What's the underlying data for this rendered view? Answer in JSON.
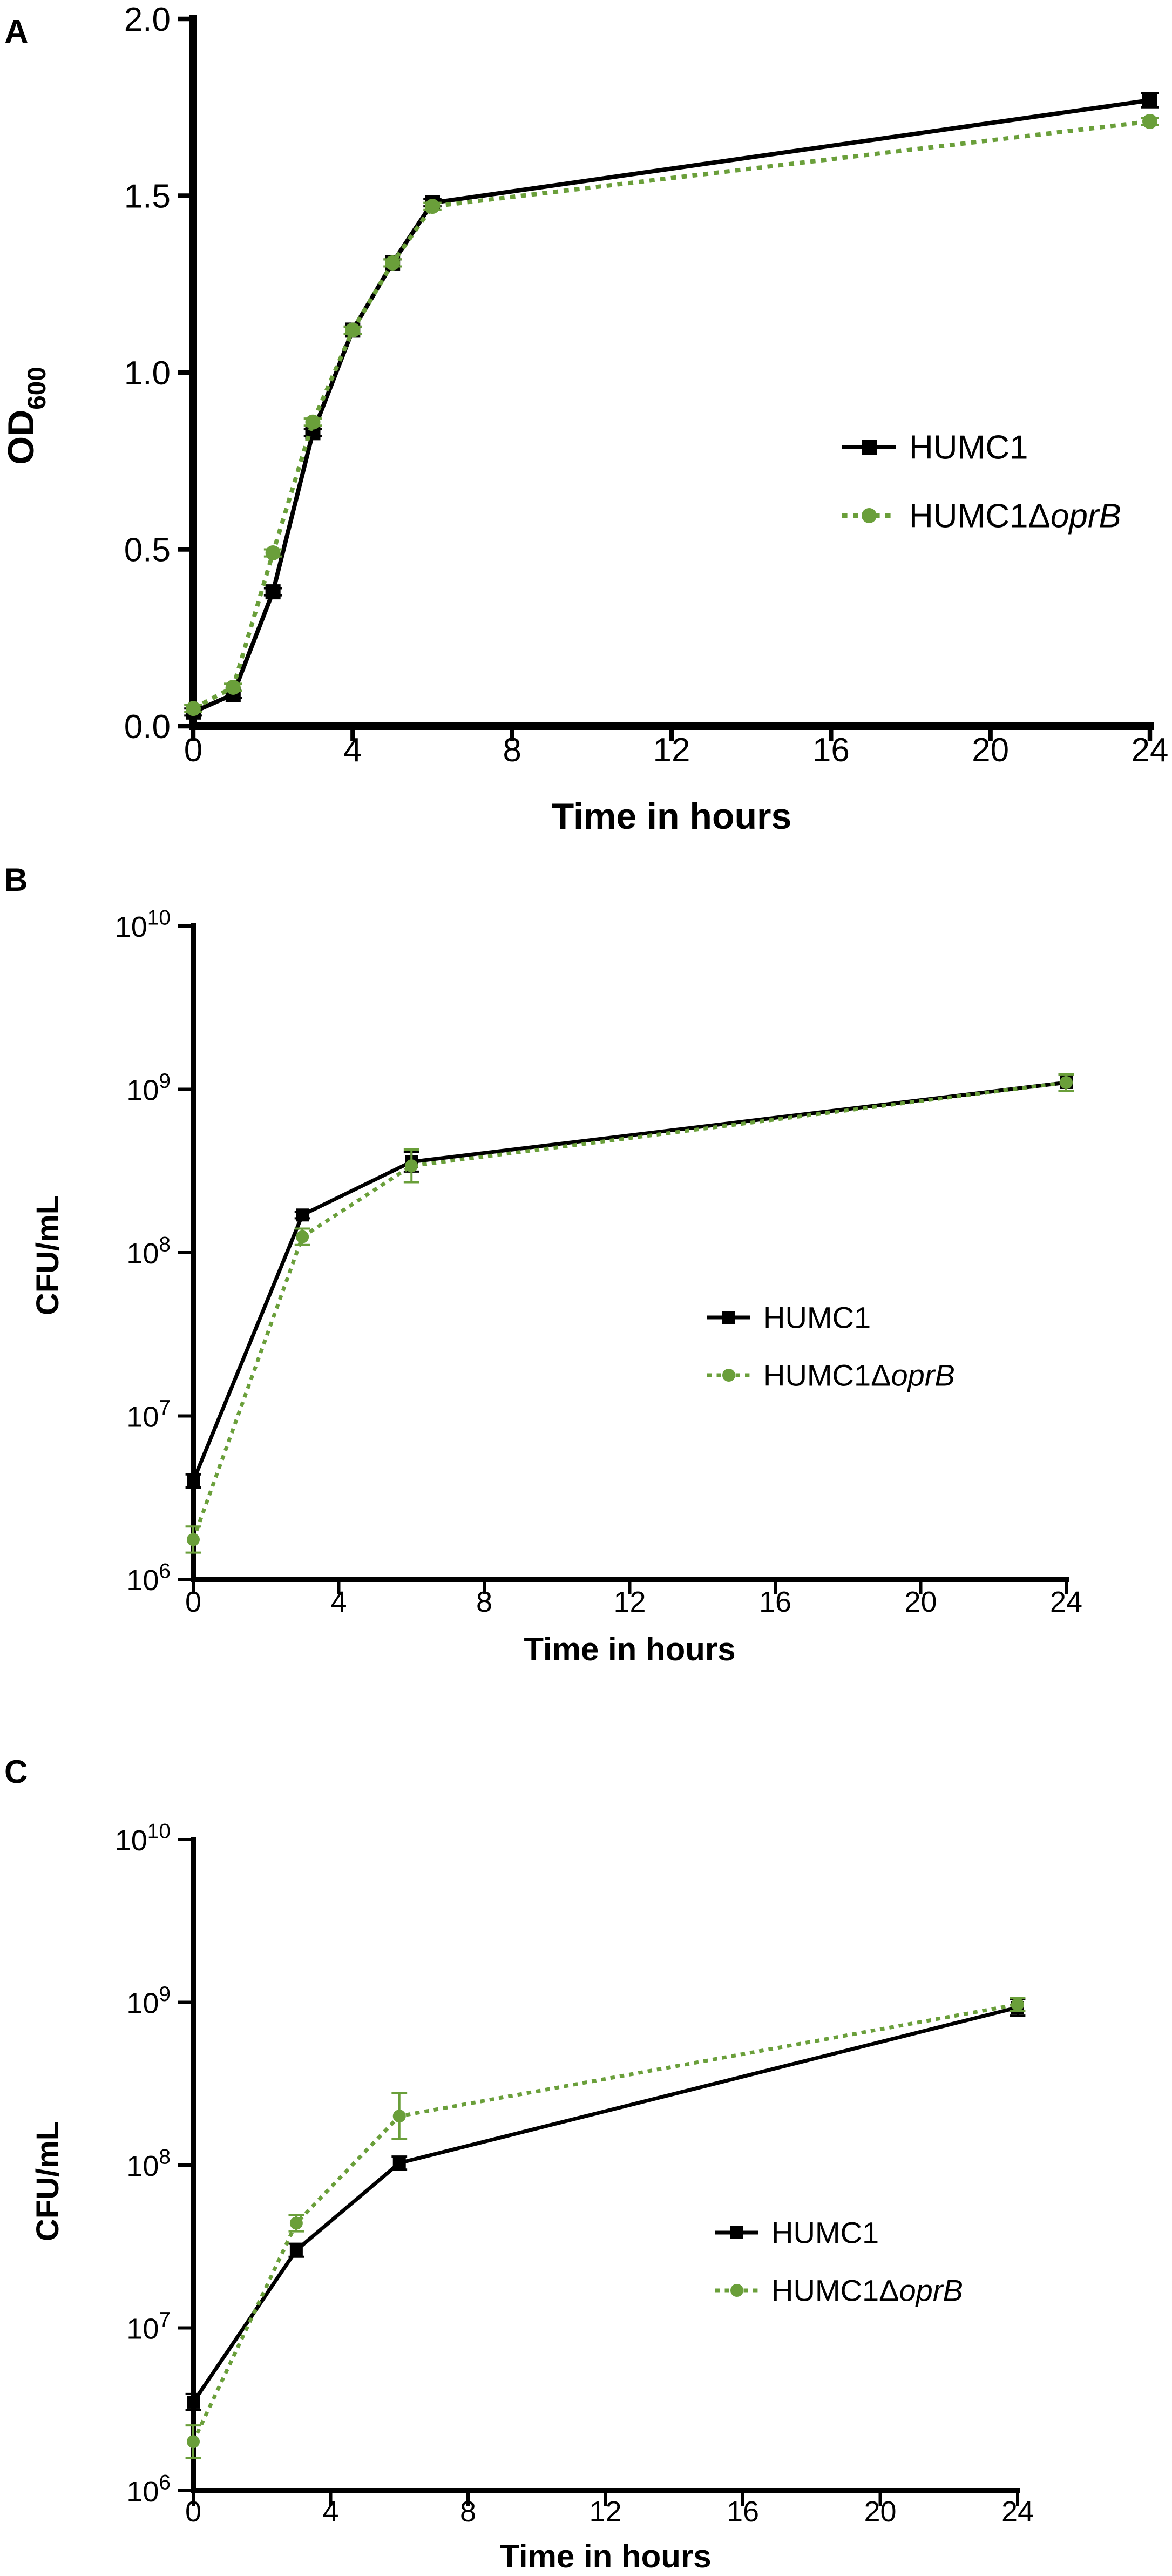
{
  "colors": {
    "axis": "#000000",
    "series1": "#000000",
    "series2": "#6a9f3a"
  },
  "chart_data": [
    {
      "panel_label": "A",
      "type": "line",
      "xlabel": "Time in hours",
      "ylabel": "OD",
      "ylabel_sub": "600",
      "xlim": [
        0,
        24
      ],
      "ylim": [
        0.0,
        2.0
      ],
      "yscale": "linear",
      "xticks": [
        0,
        4,
        8,
        12,
        16,
        20,
        24
      ],
      "yticks": [
        0.0,
        0.5,
        1.0,
        1.5,
        2.0
      ],
      "ytick_labels": [
        "0.0",
        "0.5",
        "1.0",
        "1.5",
        "2.0"
      ],
      "legend_position": "right",
      "grid": false,
      "series": [
        {
          "name": "HUMC1",
          "name_italic": "",
          "style": "solid",
          "marker": "square",
          "x": [
            0,
            1,
            2,
            3,
            4,
            5,
            6,
            24
          ],
          "y": [
            0.04,
            0.09,
            0.38,
            0.83,
            1.12,
            1.31,
            1.48,
            1.77
          ],
          "err": [
            0.01,
            0.01,
            0.01,
            0.01,
            0.01,
            0.01,
            0.01,
            0.02
          ]
        },
        {
          "name": "HUMC1Δ",
          "name_italic": "oprB",
          "style": "dotted",
          "marker": "circle",
          "x": [
            0,
            1,
            2,
            3,
            4,
            5,
            6,
            24
          ],
          "y": [
            0.05,
            0.11,
            0.49,
            0.86,
            1.12,
            1.31,
            1.47,
            1.71
          ],
          "err": [
            0.01,
            0.01,
            0.01,
            0.01,
            0.01,
            0.01,
            0.01,
            0.01
          ]
        }
      ]
    },
    {
      "panel_label": "B",
      "type": "line",
      "xlabel": "Time in hours",
      "ylabel": "CFU/mL",
      "xlim": [
        0,
        24
      ],
      "ylim": [
        6,
        10
      ],
      "yscale": "log10",
      "xticks": [
        0,
        4,
        8,
        12,
        16,
        20,
        24
      ],
      "yticks": [
        6,
        7,
        8,
        9,
        10
      ],
      "legend_position": "right",
      "grid": false,
      "series": [
        {
          "name": "HUMC1",
          "name_italic": "",
          "style": "solid",
          "marker": "square",
          "x": [
            0,
            3,
            6,
            24
          ],
          "y": [
            4000000,
            170000000,
            360000000,
            1100000000
          ],
          "err_log": [
            0.04,
            0.02,
            0.06,
            0.05
          ]
        },
        {
          "name": "HUMC1Δ",
          "name_italic": "oprB",
          "style": "dotted",
          "marker": "circle",
          "x": [
            0,
            3,
            6,
            24
          ],
          "y": [
            1750000,
            125000000,
            340000000,
            1100000000
          ],
          "err_log": [
            0.08,
            0.05,
            0.1,
            0.05
          ]
        }
      ]
    },
    {
      "panel_label": "C",
      "type": "line",
      "xlabel": "Time in hours",
      "ylabel": "CFU/mL",
      "xlim": [
        0,
        24
      ],
      "ylim": [
        6,
        10
      ],
      "yscale": "log10",
      "xticks": [
        0,
        4,
        8,
        12,
        16,
        20,
        24
      ],
      "yticks": [
        6,
        7,
        8,
        9,
        10
      ],
      "legend_position": "right",
      "grid": false,
      "series": [
        {
          "name": "HUMC1",
          "name_italic": "",
          "style": "solid",
          "marker": "square",
          "x": [
            0,
            3,
            6,
            24
          ],
          "y": [
            3500000,
            30000000,
            103000000,
            930000000
          ],
          "err_log": [
            0.05,
            0.04,
            0.04,
            0.05
          ]
        },
        {
          "name": "HUMC1Δ",
          "name_italic": "oprB",
          "style": "dotted",
          "marker": "circle",
          "x": [
            0,
            3,
            6,
            24
          ],
          "y": [
            2000000,
            44000000,
            200000000,
            970000000
          ],
          "err_log": [
            0.1,
            0.05,
            0.14,
            0.04
          ]
        }
      ]
    }
  ]
}
